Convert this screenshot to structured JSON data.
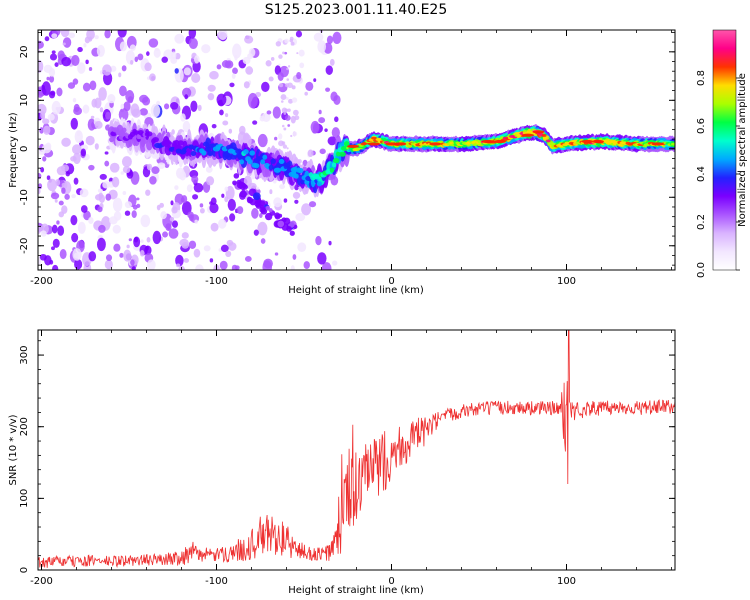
{
  "title": "S125.2023.001.11.40.E25",
  "colors": {
    "snr_line": "#ee3030",
    "background": "#ffffff",
    "axis": "#000000",
    "colormap": [
      "#ffffff",
      "#f2e6ff",
      "#d9b3ff",
      "#aa55ff",
      "#7a00ff",
      "#2222ff",
      "#00aaff",
      "#00ffcc",
      "#00ff44",
      "#aaff00",
      "#ffdd00",
      "#ff3300",
      "#ff0088",
      "#ff55aa"
    ]
  },
  "chart_data": [
    {
      "type": "heatmap",
      "title": "",
      "xlabel": "Height of straight line (km)",
      "ylabel": "Frequency (Hz)",
      "xlim": [
        -202,
        162
      ],
      "ylim": [
        -25,
        24.5
      ],
      "xticks": [
        -200,
        -100,
        0,
        100
      ],
      "xtick_labels": [
        "-200",
        "-100",
        "0",
        "100"
      ],
      "yticks": [
        -20,
        -10,
        0,
        10,
        20
      ],
      "ytick_labels": [
        "-20",
        "-10",
        "0",
        "10",
        "20"
      ],
      "colorbar": {
        "label": "Normalized spectral amplitude",
        "range": [
          0,
          1
        ],
        "ticks": [
          0.0,
          0.2,
          0.4,
          0.6,
          0.8
        ],
        "tick_labels": [
          "0.0",
          "0.2",
          "0.4",
          "0.6",
          "0.8"
        ]
      },
      "ridge": {
        "description_points_x": [
          -160,
          -140,
          -120,
          -100,
          -90,
          -80,
          -70,
          -60,
          -50,
          -40,
          -35,
          -30,
          -25,
          -20,
          -15,
          -10,
          0,
          20,
          40,
          60,
          75,
          82,
          88,
          92,
          100,
          120,
          140,
          160
        ],
        "frequency_hz": [
          3,
          2,
          0,
          0,
          -1,
          -2,
          -3,
          -4,
          -6,
          -6,
          -4,
          -1,
          0,
          0,
          1,
          2,
          1,
          1,
          1,
          1.5,
          3,
          3.5,
          2.5,
          0.5,
          1,
          1.5,
          1,
          1
        ],
        "amplitude": [
          0.25,
          0.3,
          0.35,
          0.4,
          0.45,
          0.45,
          0.4,
          0.45,
          0.45,
          0.55,
          0.55,
          0.6,
          0.6,
          0.7,
          0.75,
          0.8,
          0.8,
          0.75,
          0.75,
          0.8,
          0.85,
          0.9,
          0.85,
          0.8,
          0.8,
          0.85,
          0.75,
          0.7
        ]
      },
      "branch": {
        "x": [
          -90,
          -80,
          -70,
          -60,
          -55
        ],
        "frequency_hz": [
          -6,
          -10,
          -13,
          -16,
          -17
        ]
      },
      "noise_extent_x": [
        -202,
        -30
      ]
    },
    {
      "type": "line",
      "title": "",
      "xlabel": "Height of straight line (km)",
      "ylabel": "SNR (10 * v/v)",
      "xlim": [
        -202,
        162
      ],
      "ylim": [
        0,
        335
      ],
      "xticks": [
        -200,
        -100,
        0,
        100
      ],
      "xtick_labels": [
        "-200",
        "-100",
        "0",
        "100"
      ],
      "yticks": [
        0,
        100,
        200,
        300
      ],
      "ytick_labels": [
        "0",
        "100",
        "200",
        "300"
      ],
      "series": [
        {
          "x": [
            -202,
            -190,
            -180,
            -170,
            -160,
            -150,
            -140,
            -130,
            -120,
            -115,
            -110,
            -100,
            -90,
            -80,
            -75,
            -70,
            -65,
            -60,
            -55,
            -50,
            -45,
            -40,
            -35,
            -30,
            -28,
            -25,
            -23,
            -20,
            -15,
            -10,
            -5,
            0,
            10,
            20,
            25,
            30,
            35,
            40,
            50,
            60,
            70,
            80,
            90,
            95,
            98,
            100,
            101,
            102,
            104,
            110,
            120,
            130,
            140,
            150,
            162
          ],
          "values": [
            10,
            12,
            12,
            13,
            12,
            13,
            14,
            15,
            18,
            25,
            22,
            20,
            25,
            35,
            45,
            50,
            48,
            40,
            30,
            25,
            22,
            22,
            25,
            40,
            80,
            100,
            110,
            115,
            130,
            140,
            150,
            165,
            180,
            195,
            205,
            212,
            218,
            222,
            225,
            226,
            227,
            226,
            226,
            225,
            222,
            230,
            240,
            225,
            220,
            225,
            226,
            227,
            226,
            227,
            228
          ],
          "spread": [
            8,
            8,
            8,
            8,
            8,
            8,
            8,
            8,
            12,
            18,
            10,
            10,
            14,
            22,
            30,
            30,
            28,
            24,
            16,
            12,
            10,
            10,
            14,
            40,
            60,
            70,
            60,
            50,
            45,
            45,
            45,
            40,
            30,
            20,
            15,
            12,
            10,
            10,
            10,
            10,
            10,
            10,
            10,
            12,
            30,
            100,
            90,
            40,
            15,
            12,
            10,
            10,
            10,
            10,
            10
          ]
        }
      ]
    }
  ]
}
